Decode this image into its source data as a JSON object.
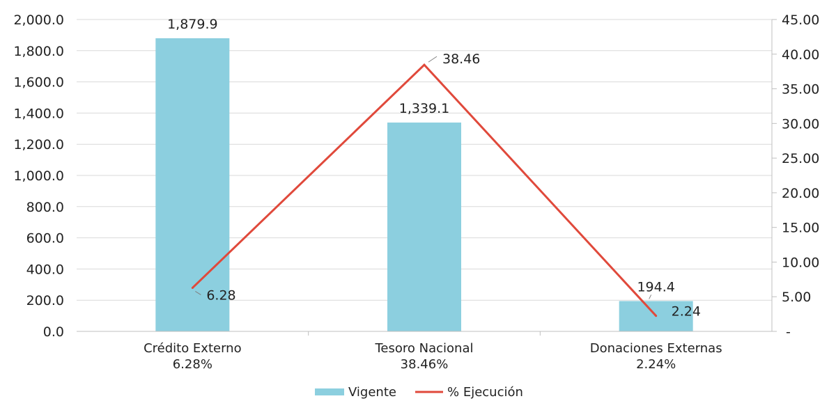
{
  "chart_data": {
    "type": "bar",
    "categories": [
      "Crédito Externo",
      "Tesoro Nacional",
      "Donaciones Externas"
    ],
    "category_sublabels": [
      "6.28%",
      "38.46%",
      "2.24%"
    ],
    "series": [
      {
        "name": "Vigente",
        "type": "bar",
        "axis": "left",
        "values": [
          1879.9,
          1339.1,
          194.4
        ],
        "labels": [
          "1,879.9",
          "1,339.1",
          "194.4"
        ],
        "color": "#8ccfdf"
      },
      {
        "name": "% Ejecución",
        "type": "line",
        "axis": "right",
        "values": [
          6.28,
          38.46,
          2.24
        ],
        "labels": [
          "6.28",
          "38.46",
          "2.24"
        ],
        "color": "#e0493b"
      }
    ],
    "y_left": {
      "min": 0,
      "max": 2000,
      "ticks": [
        0,
        200,
        400,
        600,
        800,
        1000,
        1200,
        1400,
        1600,
        1800,
        2000
      ],
      "tick_labels": [
        "0.0",
        "200.0",
        "400.0",
        "600.0",
        "800.0",
        "1,000.0",
        "1,200.0",
        "1,400.0",
        "1,600.0",
        "1,800.0",
        "2,000.0"
      ]
    },
    "y_right": {
      "min": 0,
      "max": 45,
      "ticks": [
        0,
        5,
        10,
        15,
        20,
        25,
        30,
        35,
        40,
        45
      ],
      "tick_labels": [
        "-",
        "5.00",
        "10.00",
        "15.00",
        "20.00",
        "25.00",
        "30.00",
        "35.00",
        "40.00",
        "45.00"
      ]
    },
    "grid": true,
    "legend": {
      "position": "bottom",
      "entries": [
        "Vigente",
        "% Ejecución"
      ]
    }
  }
}
